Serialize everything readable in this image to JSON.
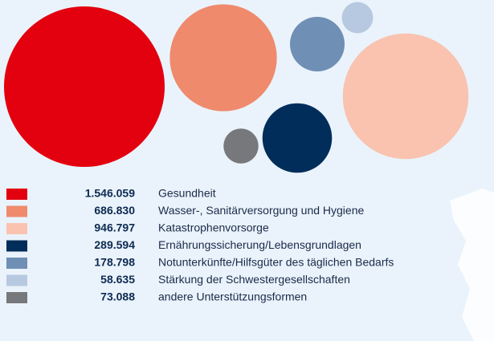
{
  "chart_data": {
    "type": "bubble",
    "categories": [
      "Gesundheit",
      "Wasser-, Sanitärversorgung und Hygiene",
      "Katastrophenvorsorge",
      "Ernährungssicherung/Lebensgrundlagen",
      "Notunterkünfte/Hilfsgüter des täglichen Bedarfs",
      "Stärkung der Schwestergesellschaften",
      "andere Unterstützungsformen"
    ],
    "values": [
      1546059,
      686830,
      946797,
      289594,
      178798,
      58635,
      73088
    ],
    "value_labels": [
      "1.546.059",
      "686.830",
      "946.797",
      "289.594",
      "178.798",
      "58.635",
      "73.088"
    ],
    "colors": [
      "#e3000f",
      "#ef8a6d",
      "#f9c3b0",
      "#002d5a",
      "#6f8fb5",
      "#b7c9e0",
      "#77787b"
    ]
  }
}
